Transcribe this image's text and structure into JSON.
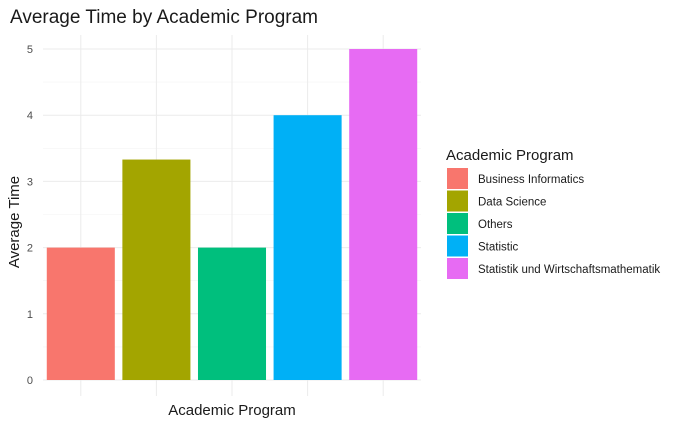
{
  "chart_data": {
    "type": "bar",
    "title": "Average Time by Academic Program",
    "xlabel": "Academic Program",
    "ylabel": "Average Time",
    "categories": [
      "Business Informatics",
      "Data Science",
      "Others",
      "Statistic",
      "Statistik und Wirtschaftsmathematik"
    ],
    "values": [
      2,
      3.33,
      2,
      4,
      5
    ],
    "colors": [
      "#F8766D",
      "#A3A500",
      "#00BF7D",
      "#00B0F6",
      "#E76BF3"
    ],
    "ylim": [
      0,
      5.2
    ],
    "yticks": [
      0,
      1,
      2,
      3,
      4,
      5
    ],
    "x_tick_labels_shown": false,
    "grid": true,
    "legend": {
      "title": "Academic Program",
      "position": "right"
    }
  }
}
